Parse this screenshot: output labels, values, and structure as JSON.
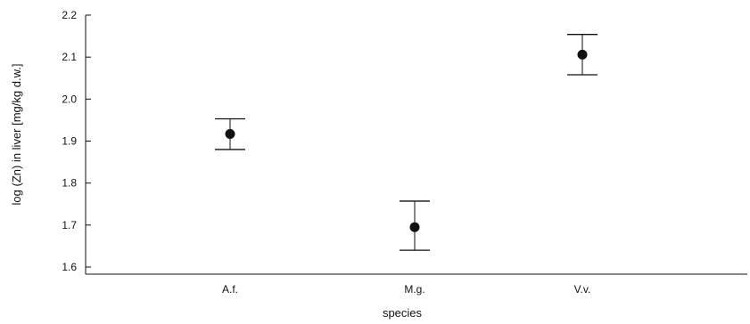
{
  "chart_data": {
    "type": "scatter",
    "subtype": "point-with-error-bars",
    "xlabel": "species",
    "ylabel": "log (Zn) in liver [mg/kg d.w.]",
    "categories": [
      "A.f.",
      "M.g.",
      "V.v."
    ],
    "values": [
      1.917,
      1.695,
      2.106
    ],
    "error_lower": [
      1.88,
      1.64,
      2.058
    ],
    "error_upper": [
      1.953,
      1.757,
      2.154
    ],
    "ylim": [
      1.585,
      2.22
    ],
    "yticks": [
      1.6,
      1.7,
      1.8,
      1.9,
      2.0,
      2.1,
      2.2
    ],
    "ytick_labels": [
      "1.6",
      "1.7",
      "1.8",
      "1.9",
      "2.0",
      "2.1",
      "2.2"
    ],
    "grid": false,
    "marker_color": "#111111"
  }
}
